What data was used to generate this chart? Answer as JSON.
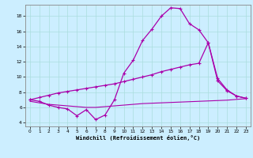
{
  "xlabel": "Windchill (Refroidissement éolien,°C)",
  "bg_color": "#cceeff",
  "grid_color": "#aadddd",
  "line_color": "#aa00aa",
  "xlim": [
    -0.5,
    23.5
  ],
  "ylim": [
    3.5,
    19.5
  ],
  "yticks": [
    4,
    6,
    8,
    10,
    12,
    14,
    16,
    18
  ],
  "xticks": [
    0,
    1,
    2,
    3,
    4,
    5,
    6,
    7,
    8,
    9,
    10,
    11,
    12,
    13,
    14,
    15,
    16,
    17,
    18,
    19,
    20,
    21,
    22,
    23
  ],
  "curve1_x": [
    0,
    1,
    2,
    3,
    4,
    5,
    6,
    7,
    8,
    9,
    10,
    11,
    12,
    13,
    14,
    15,
    16,
    17,
    18,
    19,
    20,
    21,
    22,
    23
  ],
  "curve1_y": [
    7.0,
    6.8,
    6.3,
    6.0,
    5.8,
    4.9,
    5.7,
    4.4,
    5.0,
    7.0,
    10.5,
    12.2,
    14.8,
    16.3,
    18.0,
    19.1,
    19.0,
    17.0,
    16.2,
    14.5,
    9.5,
    8.2,
    7.5,
    7.2
  ],
  "curve2_x": [
    0,
    1,
    2,
    3,
    4,
    5,
    6,
    7,
    8,
    9,
    10,
    11,
    12,
    13,
    14,
    15,
    16,
    17,
    18,
    19,
    20,
    21,
    22,
    23
  ],
  "curve2_y": [
    7.0,
    7.3,
    7.6,
    7.9,
    8.1,
    8.3,
    8.5,
    8.7,
    8.9,
    9.1,
    9.4,
    9.7,
    10.0,
    10.3,
    10.7,
    11.0,
    11.3,
    11.6,
    11.8,
    14.5,
    9.8,
    8.3,
    7.5,
    7.2
  ],
  "curve3_x": [
    0,
    1,
    2,
    3,
    4,
    5,
    6,
    7,
    8,
    9,
    10,
    11,
    12,
    13,
    14,
    15,
    16,
    17,
    18,
    19,
    20,
    21,
    22,
    23
  ],
  "curve3_y": [
    6.8,
    6.6,
    6.4,
    6.3,
    6.2,
    6.1,
    6.0,
    6.0,
    6.1,
    6.2,
    6.3,
    6.4,
    6.5,
    6.55,
    6.6,
    6.65,
    6.7,
    6.75,
    6.8,
    6.85,
    6.9,
    6.95,
    7.05,
    7.15
  ]
}
